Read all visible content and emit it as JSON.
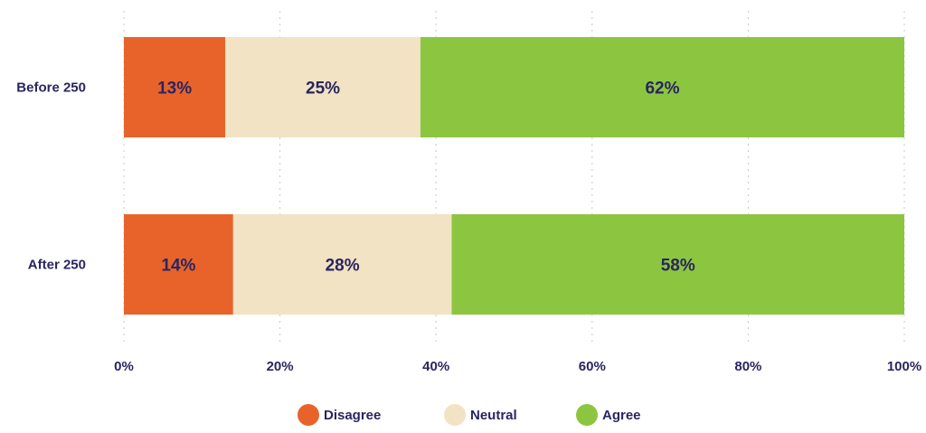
{
  "chart_data": {
    "type": "bar",
    "orientation": "horizontal",
    "stacked": true,
    "categories": [
      "Before 250",
      "After 250"
    ],
    "series": [
      {
        "name": "Disagree",
        "values": [
          13,
          14
        ],
        "color": "#e8632a"
      },
      {
        "name": "Neutral",
        "values": [
          25,
          28
        ],
        "color": "#f1e3c3"
      },
      {
        "name": "Agree",
        "values": [
          62,
          58
        ],
        "color": "#8cc641"
      }
    ],
    "data_labels": [
      [
        "13%",
        "25%",
        "62%"
      ],
      [
        "14%",
        "28%",
        "58%"
      ]
    ],
    "xlim": [
      0,
      100
    ],
    "x_ticks": [
      "0%",
      "20%",
      "40%",
      "60%",
      "80%",
      "100%"
    ],
    "grid": "vertical-dotted",
    "legend": "bottom-center",
    "title": "",
    "xlabel": "",
    "ylabel": ""
  }
}
